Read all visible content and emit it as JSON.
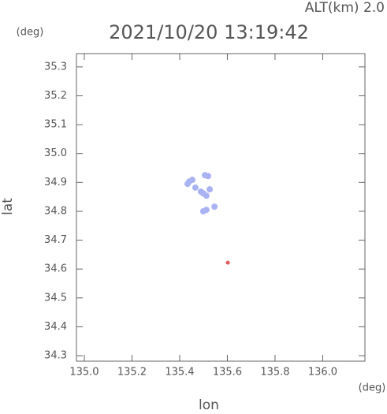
{
  "chart_data": {
    "type": "scatter",
    "title": "2021/10/20 13:19:42",
    "subtitle": "ALT(km) 2.0",
    "y_unit": "(deg)",
    "x_unit": "(deg)",
    "x_label": "lon",
    "y_label": "lat",
    "xlim": [
      134.967,
      136.177
    ],
    "ylim": [
      34.281,
      35.346
    ],
    "xticks": [
      {
        "value": 135.0,
        "label": "135.0"
      },
      {
        "value": 135.2,
        "label": "135.2"
      },
      {
        "value": 135.4,
        "label": "135.4"
      },
      {
        "value": 135.6,
        "label": "135.6"
      },
      {
        "value": 135.8,
        "label": "135.8"
      },
      {
        "value": 136.0,
        "label": "136.0"
      }
    ],
    "yticks": [
      {
        "value": 34.3,
        "label": "34.3"
      },
      {
        "value": 34.4,
        "label": "34.4"
      },
      {
        "value": 34.5,
        "label": "34.5"
      },
      {
        "value": 34.6,
        "label": "34.6"
      },
      {
        "value": 34.7,
        "label": "34.7"
      },
      {
        "value": 34.8,
        "label": "34.8"
      },
      {
        "value": 34.9,
        "label": "34.9"
      },
      {
        "value": 35.0,
        "label": "35.0"
      },
      {
        "value": 35.1,
        "label": "35.1"
      },
      {
        "value": 35.2,
        "label": "35.2"
      },
      {
        "value": 35.3,
        "label": "35.3"
      }
    ],
    "series": [
      {
        "color": "#a9b3f2",
        "x": [
          135.44,
          135.453,
          135.433,
          135.466,
          135.489,
          135.512,
          135.499,
          135.526,
          135.506,
          135.519,
          135.512,
          135.499,
          135.546
        ],
        "values": [
          34.903,
          34.909,
          34.895,
          34.882,
          34.868,
          34.854,
          34.862,
          34.876,
          34.925,
          34.922,
          34.805,
          34.8,
          34.816
        ]
      },
      {
        "color": "#e05a5a",
        "x": [
          135.602
        ],
        "values": [
          34.622
        ]
      }
    ]
  }
}
